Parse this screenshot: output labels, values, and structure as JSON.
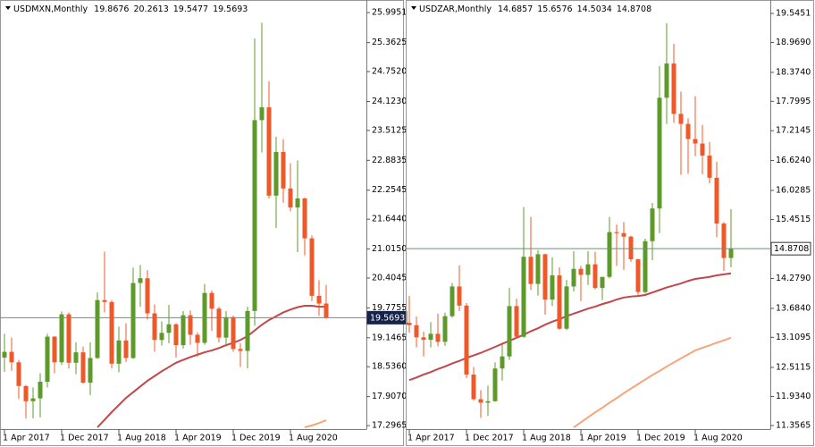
{
  "chart_data": [
    {
      "type": "candlestick",
      "title": "USDMXN,Monthly",
      "categories": [
        "1 Apr 2017",
        null,
        null,
        null,
        null,
        null,
        null,
        null,
        "1 Dec 2017",
        null,
        null,
        null,
        null,
        null,
        null,
        null,
        "1 Aug 2018",
        null,
        null,
        null,
        null,
        null,
        null,
        null,
        "1 Apr 2019",
        null,
        null,
        null,
        null,
        null,
        null,
        null,
        "1 Dec 2019",
        null,
        null,
        null,
        null,
        null,
        null,
        null,
        "1 Aug 2020",
        null,
        null,
        null,
        null,
        null
      ],
      "open": [
        18.73,
        18.85,
        18.63,
        18.13,
        17.81,
        17.87,
        18.22,
        19.17,
        18.63,
        19.64,
        18.62,
        18.84,
        18.2,
        18.72,
        19.94,
        19.9,
        18.6,
        19.09,
        18.72,
        20.3,
        20.4,
        19.66,
        19.1,
        19.25,
        19.43,
        18.99,
        19.62,
        19.21,
        19.04,
        20.09,
        19.76,
        19.15,
        19.58,
        18.91,
        18.87,
        19.71,
        23.73,
        24.0,
        22.14,
        23.06,
        22.29,
        21.89,
        22.08,
        21.24,
        20.03,
        19.8676
      ],
      "high": [
        19.23,
        19.15,
        18.68,
        18.15,
        18.1,
        18.4,
        19.23,
        19.18,
        19.7,
        19.68,
        19.05,
        18.96,
        19.05,
        20.1,
        20.96,
        19.94,
        19.38,
        19.45,
        20.62,
        20.68,
        20.57,
        19.85,
        19.49,
        19.84,
        19.45,
        19.71,
        19.72,
        19.26,
        20.28,
        20.14,
        19.8,
        19.71,
        19.61,
        19.03,
        19.8,
        25.45,
        25.78,
        24.55,
        23.38,
        23.33,
        22.82,
        22.88,
        22.1,
        21.3,
        20.36,
        20.2613
      ],
      "low": [
        18.43,
        18.45,
        17.86,
        17.45,
        17.45,
        17.47,
        18.1,
        18.4,
        18.57,
        18.5,
        18.38,
        18.18,
        17.94,
        18.7,
        19.68,
        18.5,
        18.42,
        18.64,
        18.7,
        19.8,
        19.53,
        18.85,
        18.98,
        19.03,
        18.73,
        18.92,
        19.0,
        18.75,
        19.0,
        19.29,
        19.05,
        19.0,
        18.85,
        18.53,
        18.5,
        19.4,
        23.05,
        22.08,
        21.46,
        21.99,
        21.81,
        20.95,
        20.88,
        19.92,
        19.61,
        19.5477
      ],
      "close": [
        18.85,
        18.63,
        18.13,
        17.81,
        17.87,
        18.22,
        19.17,
        18.63,
        19.64,
        18.62,
        18.84,
        18.2,
        18.72,
        19.94,
        19.9,
        18.6,
        19.09,
        18.72,
        20.3,
        20.4,
        19.66,
        19.1,
        19.25,
        19.43,
        18.99,
        19.62,
        19.21,
        19.04,
        20.09,
        19.76,
        19.15,
        19.58,
        18.91,
        18.87,
        19.71,
        23.73,
        24.0,
        22.14,
        23.06,
        22.29,
        21.89,
        22.08,
        21.24,
        20.03,
        19.8676,
        19.5693
      ],
      "up_color": "#5c9a2a",
      "down_color": "#f0582a",
      "series": [
        {
          "color": "#c2464a",
          "values": [
            null,
            null,
            null,
            null,
            null,
            null,
            null,
            null,
            null,
            null,
            null,
            null,
            null,
            17.26,
            17.42,
            17.58,
            17.73,
            17.88,
            18.0,
            18.12,
            18.24,
            18.34,
            18.44,
            18.53,
            18.62,
            18.68,
            18.74,
            18.79,
            18.84,
            18.88,
            18.93,
            18.99,
            19.04,
            19.1,
            19.18,
            19.3,
            19.42,
            19.52,
            19.6,
            19.68,
            19.74,
            19.79,
            19.82,
            19.82,
            19.8,
            19.8
          ]
        },
        {
          "color": "#f5a57a",
          "values": [
            null,
            null,
            null,
            null,
            null,
            null,
            null,
            null,
            null,
            null,
            null,
            null,
            null,
            null,
            null,
            null,
            null,
            null,
            null,
            null,
            null,
            null,
            null,
            null,
            null,
            null,
            null,
            null,
            null,
            null,
            null,
            null,
            null,
            null,
            null,
            null,
            null,
            null,
            null,
            null,
            null,
            null,
            17.26,
            17.3,
            17.35,
            17.41
          ]
        }
      ],
      "price_line_color": "#6e8f74",
      "ylim": [
        17.26,
        26.26
      ],
      "yticks": [
        25.9951,
        25.3625,
        {
          "value": 24.752,
          "label": "24.7520"
        },
        {
          "value": 24.123,
          "label": "24.1230"
        },
        23.5125,
        22.8835,
        22.2545,
        {
          "value": 21.644,
          "label": "21.6440"
        },
        {
          "value": 21.015,
          "label": "21.0150"
        },
        20.4045,
        19.7755,
        19.1465,
        {
          "value": 18.536,
          "label": "18.5360"
        },
        {
          "value": 17.907,
          "label": "17.9070"
        },
        17.2965
      ]
    },
    {
      "type": "candlestick",
      "title": "USDZAR,Monthly",
      "categories": [
        "1 Apr 2017",
        null,
        null,
        null,
        null,
        null,
        null,
        null,
        "1 Dec 2017",
        null,
        null,
        null,
        null,
        null,
        null,
        null,
        "1 Aug 2018",
        null,
        null,
        null,
        null,
        null,
        null,
        null,
        "1 Apr 2019",
        null,
        null,
        null,
        null,
        null,
        null,
        null,
        "1 Dec 2019",
        null,
        null,
        null,
        null,
        null,
        null,
        null,
        "1 Aug 2020",
        null,
        null,
        null,
        null,
        null
      ],
      "open": [
        13.4,
        13.35,
        13.11,
        13.06,
        13.18,
        13.02,
        13.53,
        14.12,
        13.74,
        12.37,
        11.88,
        11.81,
        11.84,
        12.49,
        12.73,
        13.73,
        13.12,
        14.71,
        14.17,
        14.76,
        13.86,
        14.34,
        13.28,
        14.12,
        14.47,
        14.35,
        14.56,
        14.09,
        14.31,
        15.2,
        15.18,
        15.11,
        14.66,
        14.01,
        15.02,
        15.67,
        17.87,
        18.55,
        17.55,
        17.35,
        17.05,
        16.96,
        16.72,
        16.28,
        15.37,
        14.6857
      ],
      "high": [
        13.93,
        13.52,
        13.22,
        13.41,
        13.58,
        13.6,
        14.19,
        14.54,
        13.79,
        12.52,
        12.06,
        12.15,
        12.61,
        12.97,
        14.09,
        13.88,
        15.7,
        15.5,
        14.84,
        14.77,
        14.7,
        14.5,
        14.25,
        14.82,
        14.53,
        14.82,
        14.81,
        14.31,
        15.5,
        15.35,
        15.4,
        15.13,
        14.67,
        15.07,
        15.78,
        18.5,
        19.35,
        18.94,
        17.99,
        17.46,
        17.9,
        17.33,
        16.99,
        16.6,
        15.4,
        15.6576
      ],
      "low": [
        13.2,
        12.91,
        12.73,
        12.91,
        12.93,
        12.94,
        13.5,
        13.63,
        12.3,
        11.85,
        11.51,
        11.55,
        11.83,
        12.25,
        12.66,
        13.1,
        13.1,
        14.05,
        13.94,
        13.56,
        13.73,
        13.26,
        13.25,
        14.02,
        13.83,
        14.15,
        14.06,
        13.85,
        14.28,
        14.53,
        14.45,
        14.61,
        13.95,
        13.98,
        14.64,
        15.18,
        17.35,
        17.37,
        16.34,
        16.36,
        16.71,
        16.35,
        16.17,
        15.1,
        14.43,
        14.5034
      ],
      "close": [
        13.35,
        13.11,
        13.06,
        13.18,
        13.02,
        13.53,
        14.12,
        13.74,
        12.37,
        11.88,
        11.81,
        11.84,
        12.49,
        12.73,
        13.73,
        13.12,
        14.71,
        14.17,
        14.76,
        13.86,
        14.34,
        13.28,
        14.12,
        14.47,
        14.35,
        14.56,
        14.09,
        14.31,
        15.2,
        15.18,
        15.11,
        14.66,
        14.01,
        15.02,
        15.67,
        17.87,
        18.55,
        17.55,
        17.35,
        17.05,
        16.96,
        16.72,
        16.28,
        15.37,
        14.6857,
        14.8708
      ],
      "up_color": "#5c9a2a",
      "down_color": "#f0582a",
      "series": [
        {
          "color": "#c2464a",
          "values": [
            12.26,
            12.31,
            12.37,
            12.42,
            12.48,
            12.53,
            12.59,
            12.64,
            12.7,
            12.75,
            12.8,
            12.86,
            12.92,
            12.98,
            13.04,
            13.1,
            13.16,
            13.23,
            13.29,
            13.36,
            13.42,
            13.47,
            13.53,
            13.58,
            13.63,
            13.68,
            13.72,
            13.77,
            13.81,
            13.86,
            13.9,
            13.92,
            13.93,
            13.95,
            14.0,
            14.05,
            14.1,
            14.14,
            14.18,
            14.23,
            14.27,
            14.29,
            14.31,
            14.34,
            14.36,
            14.38
          ]
        },
        {
          "color": "#f5a57a",
          "values": [
            null,
            null,
            null,
            null,
            null,
            null,
            null,
            null,
            null,
            null,
            null,
            null,
            null,
            null,
            null,
            null,
            null,
            null,
            null,
            null,
            null,
            null,
            null,
            11.32,
            11.42,
            11.52,
            11.62,
            11.71,
            11.81,
            11.9,
            12.0,
            12.09,
            12.18,
            12.27,
            12.36,
            12.44,
            12.53,
            12.61,
            12.69,
            12.77,
            12.85,
            12.9,
            12.95,
            13.0,
            13.05,
            13.1
          ]
        }
      ],
      "price_line_color": "#6e8f74",
      "ylim": [
        11.321,
        19.812
      ],
      "yticks": [
        19.5451,
        {
          "value": 18.969,
          "label": "18.9690"
        },
        {
          "value": 18.374,
          "label": "18.3740"
        },
        17.7995,
        17.2145,
        {
          "value": 16.624,
          "label": "16.6240"
        },
        16.0285,
        15.4515,
        {
          "value": 14.279,
          "label": "14.2790"
        },
        {
          "value": 13.684,
          "label": "13.6840"
        },
        13.1095,
        12.5115,
        {
          "value": 11.934,
          "label": "11.9340"
        },
        11.3565
      ]
    }
  ]
}
